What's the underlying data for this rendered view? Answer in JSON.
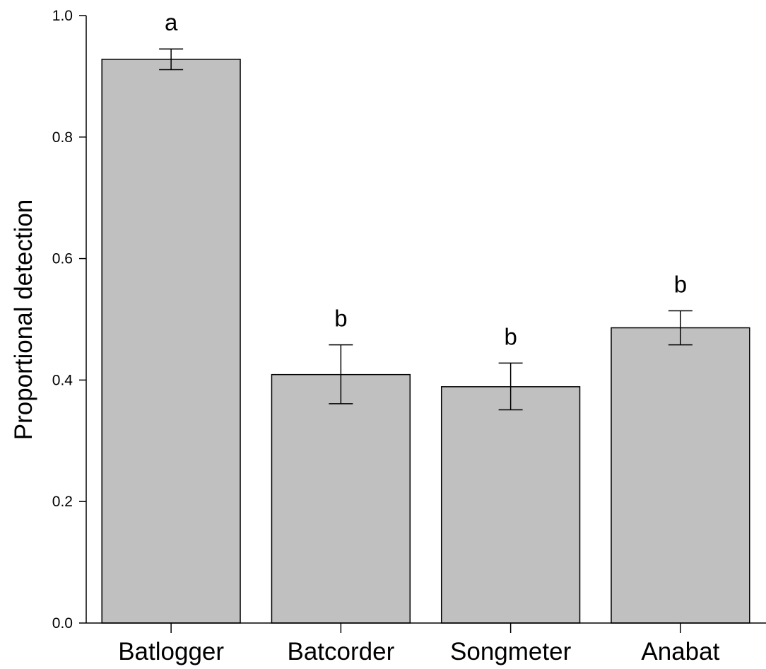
{
  "chart_data": {
    "type": "bar",
    "title": "",
    "xlabel": "",
    "ylabel": "Proportional detection",
    "ylim": [
      0,
      1.0
    ],
    "yticks": [
      "0.0",
      "0.2",
      "0.4",
      "0.6",
      "0.8",
      "1.0"
    ],
    "categories": [
      "Batlogger",
      "Batcorder",
      "Songmeter",
      "Anabat"
    ],
    "values": [
      0.928,
      0.409,
      0.389,
      0.486
    ],
    "error_low": [
      0.911,
      0.361,
      0.351,
      0.458
    ],
    "error_high": [
      0.945,
      0.458,
      0.428,
      0.514
    ],
    "significance_labels": [
      "a",
      "b",
      "b",
      "b"
    ],
    "bar_color": "#c0c0c0",
    "grid": false,
    "legend": "none"
  }
}
